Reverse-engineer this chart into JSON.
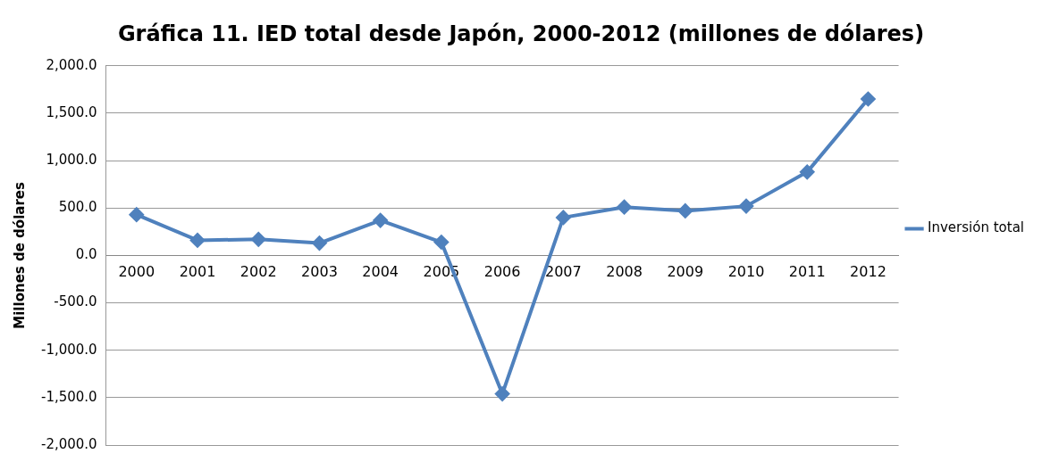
{
  "chart_data": {
    "type": "line",
    "title": "Gráfica 11. IED total desde Japón, 2000-2012 (millones de dólares)",
    "ylabel": "Millones de dólares",
    "categories": [
      "2000",
      "2001",
      "2002",
      "2003",
      "2004",
      "2005",
      "2006",
      "2007",
      "2008",
      "2009",
      "2010",
      "2011",
      "2012"
    ],
    "series": [
      {
        "name": "Inversión total",
        "color": "#4f81bd",
        "values": [
          430,
          160,
          170,
          130,
          370,
          140,
          -1460,
          400,
          510,
          470,
          520,
          880,
          1650
        ]
      }
    ],
    "ylim": [
      -2000,
      2000
    ],
    "yticks": [
      {
        "value": -2000,
        "label": "-2,000.0"
      },
      {
        "value": -1500,
        "label": "-1,500.0"
      },
      {
        "value": -1000,
        "label": "-1,000.0"
      },
      {
        "value": -500,
        "label": "-500.0"
      },
      {
        "value": 0,
        "label": "0.0"
      },
      {
        "value": 500,
        "label": "500.0"
      },
      {
        "value": 1000,
        "label": "1,000.0"
      },
      {
        "value": 1500,
        "label": "1,500.0"
      },
      {
        "value": 2000,
        "label": "2,000.0"
      }
    ],
    "grid": "y",
    "legend": "right",
    "marker": "diamond",
    "line_style": "solid"
  }
}
